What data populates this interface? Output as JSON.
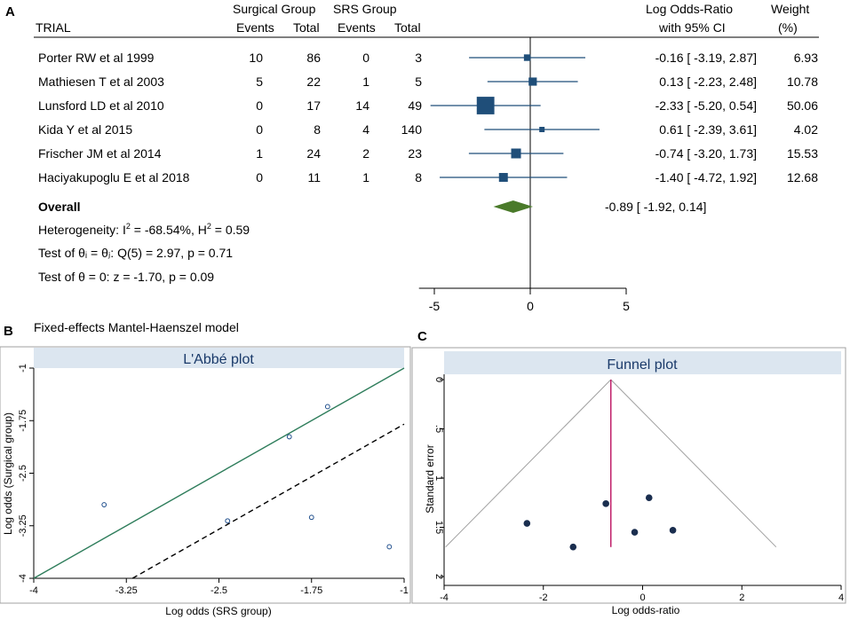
{
  "panels": {
    "a": "A",
    "b": "B",
    "c": "C"
  },
  "forest": {
    "headers": {
      "trial": "TRIAL",
      "surgical_group": "Surgical Group",
      "srs_group": "SRS Group",
      "events": "Events",
      "total": "Total",
      "log_odds_ratio": "Log Odds-Ratio",
      "with_ci": "with 95% CI",
      "weight": "Weight",
      "weight_unit": "(%)"
    },
    "overall_label": "Overall",
    "stats": {
      "heterogeneity_prefix": "Heterogeneity: I",
      "heterogeneity_rest": " = -68.54%, H",
      "heterogeneity_end": " = 0.59",
      "sup2": "2",
      "test_q": "Test of θᵢ = θⱼ: Q(5) = 2.97, p = 0.71",
      "test_z": "Test of θ = 0: z = -1.70, p = 0.09"
    },
    "model": "Fixed-effects Mantel-Haenszel model"
  },
  "chart_data": [
    {
      "type": "forest",
      "title": "",
      "studies": [
        {
          "name": "Porter RW et al 1999",
          "surg_events": "10",
          "surg_total": "86",
          "srs_events": "0",
          "srs_total": "3",
          "lor": -0.16,
          "lo": -3.19,
          "hi": 2.87,
          "ci_text": "-0.16 [  -3.19,  2.87]",
          "weight": 6.93,
          "weight_text": "6.93"
        },
        {
          "name": "Mathiesen T et al 2003",
          "surg_events": "5",
          "surg_total": "22",
          "srs_events": "1",
          "srs_total": "5",
          "lor": 0.13,
          "lo": -2.23,
          "hi": 2.48,
          "ci_text": "0.13 [  -2.23,  2.48]",
          "weight": 10.78,
          "weight_text": "10.78"
        },
        {
          "name": "Lunsford LD et al 2010",
          "surg_events": "0",
          "surg_total": "17",
          "srs_events": "14",
          "srs_total": "49",
          "lor": -2.33,
          "lo": -5.2,
          "hi": 0.54,
          "ci_text": "-2.33 [  -5.20,  0.54]",
          "weight": 50.06,
          "weight_text": "50.06"
        },
        {
          "name": "Kida Y et al  2015",
          "surg_events": "0",
          "surg_total": "8",
          "srs_events": "4",
          "srs_total": "140",
          "lor": 0.61,
          "lo": -2.39,
          "hi": 3.61,
          "ci_text": "0.61 [  -2.39,  3.61]",
          "weight": 4.02,
          "weight_text": "4.02"
        },
        {
          "name": "Frischer JM et al 2014",
          "surg_events": "1",
          "surg_total": "24",
          "srs_events": "2",
          "srs_total": "23",
          "lor": -0.74,
          "lo": -3.2,
          "hi": 1.73,
          "ci_text": "-0.74 [  -3.20,  1.73]",
          "weight": 15.53,
          "weight_text": "15.53"
        },
        {
          "name": "Haciyakupoglu E et al 2018",
          "surg_events": "0",
          "surg_total": "11",
          "srs_events": "1",
          "srs_total": "8",
          "lor": -1.4,
          "lo": -4.72,
          "hi": 1.92,
          "ci_text": "-1.40 [  -4.72,  1.92]",
          "weight": 12.68,
          "weight_text": "12.68"
        }
      ],
      "overall": {
        "lor": -0.89,
        "lo": -1.92,
        "hi": 0.14,
        "ci_text": "-0.89 [  -1.92,  0.14]"
      },
      "xlim": [
        -5.8,
        5
      ],
      "xticks": [
        -5,
        0,
        5
      ],
      "xtick_labels": [
        "-5",
        "0",
        "5"
      ],
      "colors": {
        "marker": "#1f4e79",
        "diamond": "#4a7a2a"
      }
    },
    {
      "type": "scatter",
      "title": "L'Abbé plot",
      "xlabel": "Log odds (SRS group)",
      "ylabel": "Log odds (Surgical group)",
      "xlim": [
        -4,
        -1
      ],
      "ylim": [
        -4,
        -1
      ],
      "xticks": [
        -4,
        -3.25,
        -2.5,
        -1.75,
        -1
      ],
      "xtick_labels": [
        "-4",
        "-3.25",
        "-2.5",
        "-1.75",
        "-1"
      ],
      "yticks": [
        -4,
        -3.25,
        -2.5,
        -1.75,
        -1
      ],
      "ytick_labels": [
        "-4",
        "-3.25",
        "-2.5",
        "-1.75",
        "-1"
      ],
      "points": [
        {
          "x": -3.43,
          "y": -2.95
        },
        {
          "x": -2.43,
          "y": -3.18
        },
        {
          "x": -1.93,
          "y": -1.98
        },
        {
          "x": -1.75,
          "y": -3.13
        },
        {
          "x": -1.62,
          "y": -1.55
        },
        {
          "x": -1.12,
          "y": -3.55
        }
      ],
      "lines": [
        {
          "name": "equality",
          "style": "solid",
          "color": "#2e7d5b",
          "points": [
            [
              -4,
              -4
            ],
            [
              -1,
              -1
            ]
          ]
        },
        {
          "name": "overall effect",
          "style": "dashed",
          "color": "#000000",
          "points": [
            [
              -3.2,
              -4
            ],
            [
              -1,
              -1.8
            ]
          ]
        }
      ],
      "colors": {
        "title_bg": "#dce6f0",
        "marker": "#1f4e8c"
      }
    },
    {
      "type": "scatter",
      "title": "Funnel plot",
      "xlabel": "Log odds-ratio",
      "ylabel": "Standard error",
      "xlim": [
        -4,
        4
      ],
      "ylim": [
        0,
        2
      ],
      "y_reversed": true,
      "xticks": [
        -4,
        -2,
        0,
        2,
        4
      ],
      "xtick_labels": [
        "-4",
        "-2",
        "0",
        "2",
        "4"
      ],
      "yticks": [
        0,
        0.5,
        1,
        1.5,
        2
      ],
      "ytick_labels": [
        "0",
        ".5",
        "1",
        "1.5",
        "2"
      ],
      "points": [
        {
          "x": -2.33,
          "y": 1.46
        },
        {
          "x": -1.4,
          "y": 1.7
        },
        {
          "x": -0.74,
          "y": 1.26
        },
        {
          "x": -0.16,
          "y": 1.55
        },
        {
          "x": 0.13,
          "y": 1.2
        },
        {
          "x": 0.61,
          "y": 1.53
        }
      ],
      "funnel": {
        "apex": [
          -0.64,
          0
        ],
        "left_end": [
          -3.97,
          1.7
        ],
        "right_end": [
          2.69,
          1.7
        ]
      },
      "overall_line": {
        "x": -0.64,
        "y0": 0,
        "y1": 1.7
      },
      "colors": {
        "title_bg": "#dce6f0",
        "marker": "#1a2e4f",
        "overall_line": "#c0206a",
        "funnel": "#a0a0a0"
      }
    }
  ]
}
